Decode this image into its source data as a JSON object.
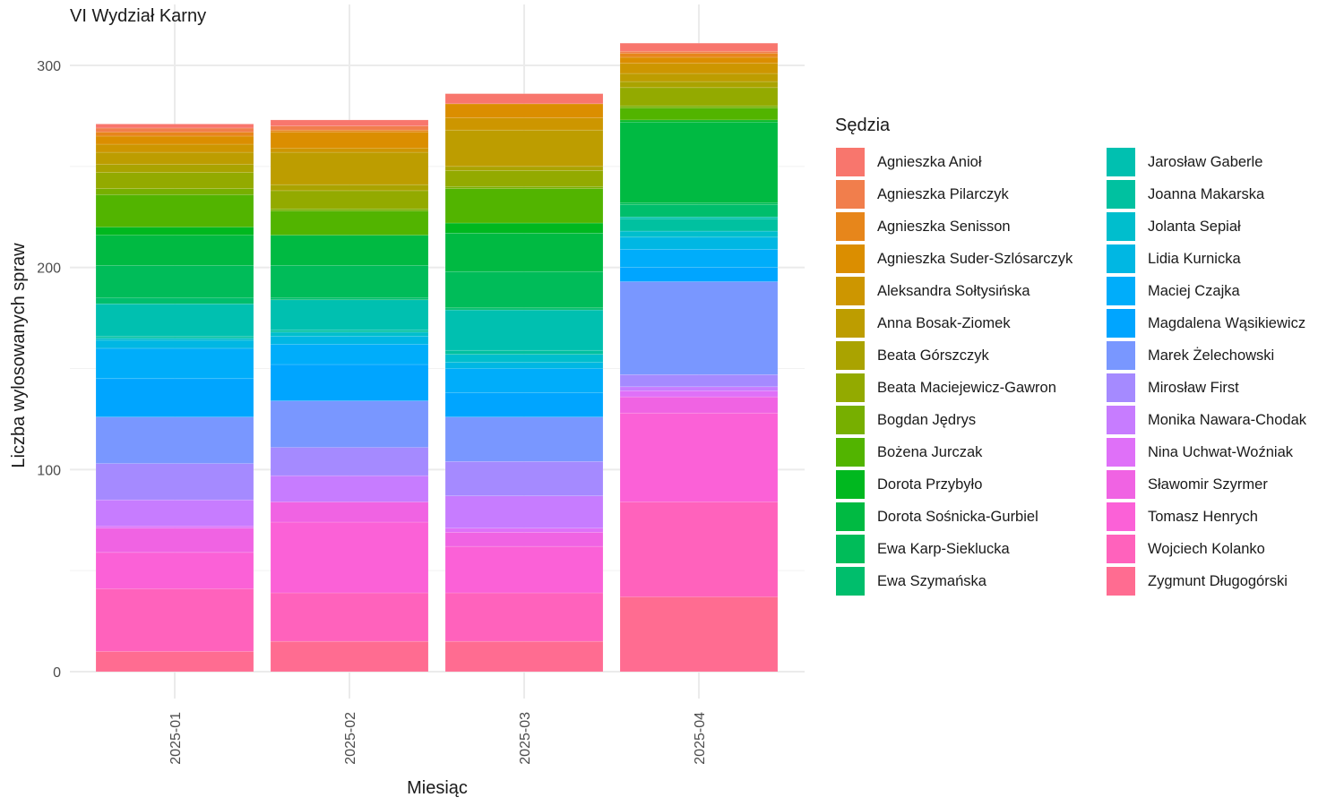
{
  "chart_data": {
    "type": "bar",
    "stacked": true,
    "title": "VI Wydział Karny",
    "xlabel": "Miesiąc",
    "ylabel": "Liczba wylosowanych spraw",
    "ylim": [
      0,
      320
    ],
    "yticks": [
      0,
      100,
      200,
      300
    ],
    "grid": true,
    "legend_title": "Sędzia",
    "legend_placement": "right",
    "categories": [
      "2025-01",
      "2025-02",
      "2025-03",
      "2025-04"
    ],
    "series": [
      {
        "name": "Agnieszka Anioł",
        "color": "#F8766D",
        "values": [
          2,
          3,
          5,
          4
        ]
      },
      {
        "name": "Agnieszka Pilarczyk",
        "color": "#F17E4C",
        "values": [
          2,
          2,
          0,
          1
        ]
      },
      {
        "name": "Agnieszka Senisson",
        "color": "#E7861B",
        "values": [
          2,
          1,
          0,
          2
        ]
      },
      {
        "name": "Agnieszka Suder-Szlósarczyk",
        "color": "#DB8E00",
        "values": [
          4,
          8,
          7,
          3
        ]
      },
      {
        "name": "Aleksandra Sołtysińska",
        "color": "#CD9600",
        "values": [
          4,
          2,
          6,
          5
        ]
      },
      {
        "name": "Anna Bosak-Ziomek",
        "color": "#BD9D00",
        "values": [
          6,
          16,
          18,
          4
        ]
      },
      {
        "name": "Beata Górszczyk",
        "color": "#AAA300",
        "values": [
          4,
          3,
          2,
          3
        ]
      },
      {
        "name": "Beata Maciejewicz-Gawron",
        "color": "#93AA00",
        "values": [
          8,
          9,
          8,
          9
        ]
      },
      {
        "name": "Bogdan Jędrys",
        "color": "#77AF00",
        "values": [
          3,
          1,
          1,
          1
        ]
      },
      {
        "name": "Bożena Jurczak",
        "color": "#52B400",
        "values": [
          16,
          12,
          17,
          6
        ]
      },
      {
        "name": "Dorota Przybyło",
        "color": "#00B81F",
        "values": [
          4,
          0,
          5,
          1
        ]
      },
      {
        "name": "Dorota Sośnicka-Gurbiel",
        "color": "#00BA42",
        "values": [
          15,
          15,
          19,
          40
        ]
      },
      {
        "name": "Ewa Karp-Sieklucka",
        "color": "#00BC59",
        "values": [
          16,
          16,
          18,
          1
        ]
      },
      {
        "name": "Ewa Szymańska",
        "color": "#00BE6C",
        "values": [
          3,
          1,
          1,
          6
        ]
      },
      {
        "name": "Jarosław Gaberle",
        "color": "#00C0B0",
        "values": [
          16,
          15,
          20,
          1
        ]
      },
      {
        "name": "Joanna Makarska",
        "color": "#00C1A0",
        "values": [
          1,
          1,
          2,
          6
        ]
      },
      {
        "name": "Jolanta Sepiał",
        "color": "#00BECD",
        "values": [
          1,
          2,
          4,
          3
        ]
      },
      {
        "name": "Lidia Kurnicka",
        "color": "#00B7E3",
        "values": [
          4,
          4,
          3,
          6
        ]
      },
      {
        "name": "Maciej Czajka",
        "color": "#00ADFA",
        "values": [
          15,
          10,
          12,
          9
        ]
      },
      {
        "name": "Magdalena Wąsikiewicz",
        "color": "#00A5FF",
        "values": [
          19,
          18,
          12,
          7
        ]
      },
      {
        "name": "Marek Żelechowski",
        "color": "#7997FF",
        "values": [
          23,
          23,
          22,
          46
        ]
      },
      {
        "name": "Mirosław First",
        "color": "#A58AFF",
        "values": [
          18,
          14,
          17,
          6
        ]
      },
      {
        "name": "Monika Nawara-Chodak",
        "color": "#C77CFF",
        "values": [
          13,
          13,
          16,
          2
        ]
      },
      {
        "name": "Nina Uchwat-Woźniak",
        "color": "#DF70F8",
        "values": [
          1,
          0,
          2,
          3
        ]
      },
      {
        "name": "Sławomir Szyrmer",
        "color": "#F063E3",
        "values": [
          12,
          10,
          7,
          8
        ]
      },
      {
        "name": "Tomasz Henrych",
        "color": "#FB61D7",
        "values": [
          18,
          35,
          23,
          44
        ]
      },
      {
        "name": "Wojciech Kolanko",
        "color": "#FF62BC",
        "values": [
          31,
          24,
          24,
          47
        ]
      },
      {
        "name": "Zygmunt Długogórski",
        "color": "#FF6C91",
        "values": [
          10,
          15,
          15,
          37
        ]
      }
    ]
  }
}
